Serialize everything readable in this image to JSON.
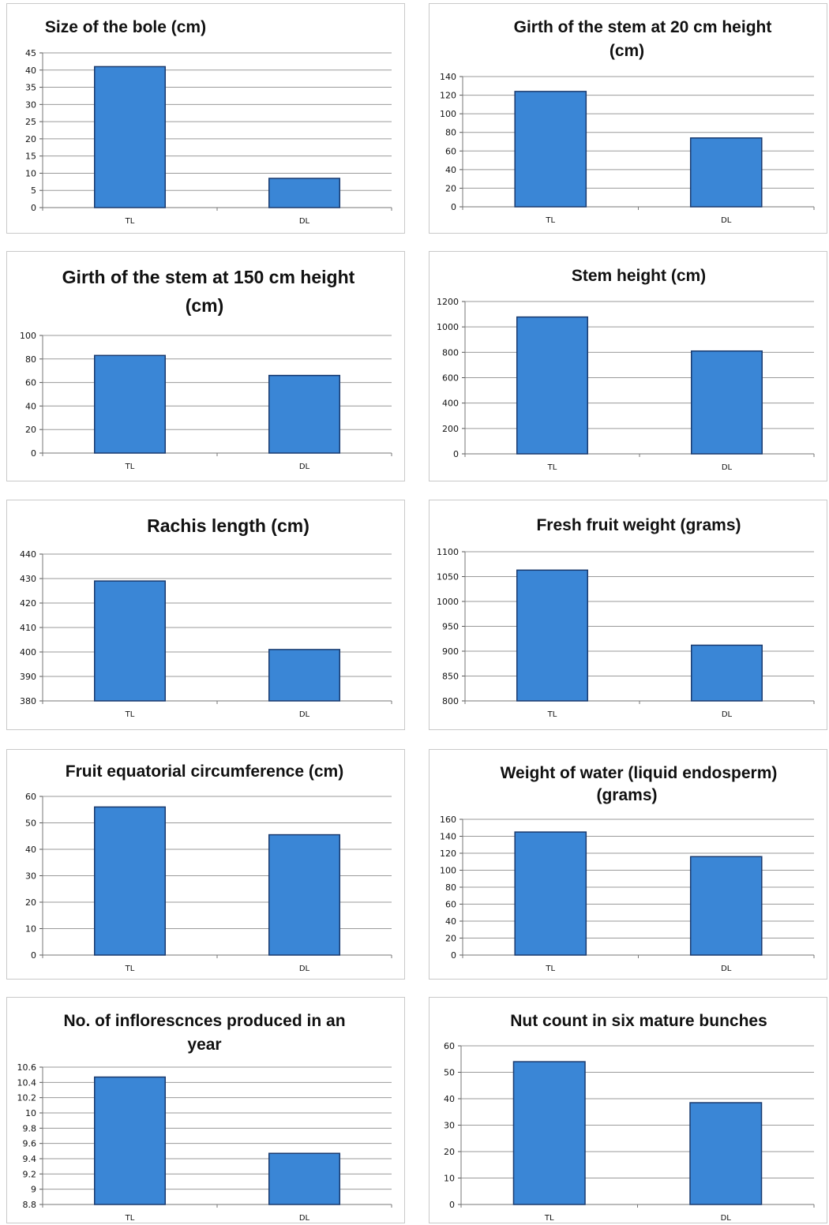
{
  "chart_data": [
    {
      "type": "bar",
      "title": "Size of the bole (cm)",
      "categories": [
        "TL",
        "DL"
      ],
      "values": [
        41,
        8.5
      ],
      "ylim": [
        0,
        45
      ],
      "yticks": [
        0,
        5,
        10,
        15,
        20,
        25,
        30,
        35,
        40,
        45
      ],
      "xlabel": "",
      "ylabel": "",
      "grid": true,
      "legend": "none"
    },
    {
      "type": "bar",
      "title": "Girth of the stem at 20 cm height (cm)",
      "categories": [
        "TL",
        "DL"
      ],
      "values": [
        124,
        74
      ],
      "ylim": [
        0,
        140
      ],
      "yticks": [
        0,
        20,
        40,
        60,
        80,
        100,
        120,
        140
      ],
      "xlabel": "",
      "ylabel": "",
      "grid": true,
      "legend": "none"
    },
    {
      "type": "bar",
      "title": "Girth of the stem at 150 cm height (cm)",
      "categories": [
        "TL",
        "DL"
      ],
      "values": [
        83,
        66
      ],
      "ylim": [
        0,
        100
      ],
      "yticks": [
        0,
        20,
        40,
        60,
        80,
        100
      ],
      "xlabel": "",
      "ylabel": "",
      "grid": true,
      "legend": "none"
    },
    {
      "type": "bar",
      "title": "Stem height (cm)",
      "categories": [
        "TL",
        "DL"
      ],
      "values": [
        1078,
        810
      ],
      "ylim": [
        0,
        1200
      ],
      "yticks": [
        0,
        200,
        400,
        600,
        800,
        1000,
        1200
      ],
      "xlabel": "",
      "ylabel": "",
      "grid": true,
      "legend": "none"
    },
    {
      "type": "bar",
      "title": "Rachis length (cm)",
      "categories": [
        "TL",
        "DL"
      ],
      "values": [
        429,
        401
      ],
      "ylim": [
        380,
        440
      ],
      "yticks": [
        380,
        390,
        400,
        410,
        420,
        430,
        440
      ],
      "xlabel": "",
      "ylabel": "",
      "grid": true,
      "legend": "none"
    },
    {
      "type": "bar",
      "title": "Fresh fruit weight (grams)",
      "categories": [
        "TL",
        "DL"
      ],
      "values": [
        1063,
        912
      ],
      "ylim": [
        800,
        1100
      ],
      "yticks": [
        800,
        850,
        900,
        950,
        1000,
        1050,
        1100
      ],
      "xlabel": "",
      "ylabel": "",
      "grid": true,
      "legend": "none"
    },
    {
      "type": "bar",
      "title": "Fruit equatorial circumference (cm)",
      "categories": [
        "TL",
        "DL"
      ],
      "values": [
        56,
        45.5
      ],
      "ylim": [
        0,
        60
      ],
      "yticks": [
        0,
        10,
        20,
        30,
        40,
        50,
        60
      ],
      "xlabel": "",
      "ylabel": "",
      "grid": true,
      "legend": "none"
    },
    {
      "type": "bar",
      "title": "Weight of water (liquid endosperm) (grams)",
      "categories": [
        "TL",
        "DL"
      ],
      "values": [
        145,
        116
      ],
      "ylim": [
        0,
        160
      ],
      "yticks": [
        0,
        20,
        40,
        60,
        80,
        100,
        120,
        140,
        160
      ],
      "xlabel": "",
      "ylabel": "",
      "grid": true,
      "legend": "none"
    },
    {
      "type": "bar",
      "title": "No. of inflorescnces produced in an year",
      "categories": [
        "TL",
        "DL"
      ],
      "values": [
        10.47,
        9.47
      ],
      "ylim": [
        8.8,
        10.6
      ],
      "yticks": [
        "8.8",
        "9",
        "9.2",
        "9.4",
        "9.6",
        "9.8",
        "10",
        "10.2",
        "10.4",
        "10.6"
      ],
      "xlabel": "",
      "ylabel": "",
      "grid": true,
      "legend": "none"
    },
    {
      "type": "bar",
      "title": "Nut count in six mature bunches",
      "categories": [
        "TL",
        "DL"
      ],
      "values": [
        54,
        38.5
      ],
      "ylim": [
        0,
        60
      ],
      "yticks": [
        0,
        10,
        20,
        30,
        40,
        50,
        60
      ],
      "xlabel": "",
      "ylabel": "",
      "grid": true,
      "legend": "none"
    }
  ],
  "colors": {
    "bar_fill": "#3a86d6",
    "bar_edge": "#1a3a6e",
    "grid": "#9a9a9a",
    "panel_border": "#c9c9c9"
  }
}
